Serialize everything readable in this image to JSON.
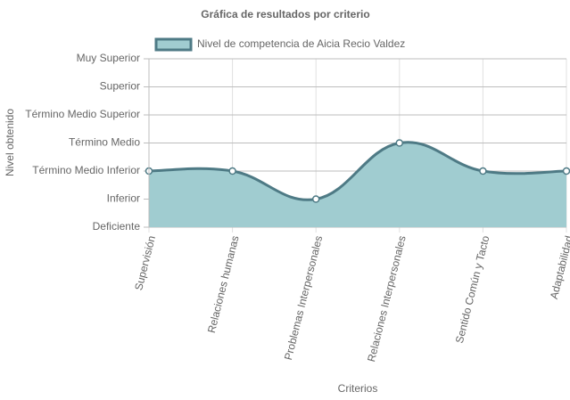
{
  "chart_data": {
    "type": "line",
    "title": "Gráfica de resultados por criterio",
    "x_label": "Criterios",
    "y_label": "Nivel obtenido",
    "categories": [
      "Supervisión",
      "Relaciones humanas",
      "Problemas Interpersonales",
      "Relaciones Interpersonales",
      "Sentido Común y Tacto",
      "Adaptabilidad"
    ],
    "series": [
      {
        "name": "Nivel de competencia de Aicia Recio Valdez",
        "color": "#4e7a85",
        "fill": "#a0ccd0",
        "values": [
          2,
          2,
          1,
          3,
          2,
          2
        ]
      }
    ],
    "ylim": [
      0,
      6
    ],
    "yticks": [
      {
        "value": 0,
        "label": "Deficiente"
      },
      {
        "value": 1,
        "label": "Inferior"
      },
      {
        "value": 2,
        "label": "Término Medio Inferior"
      },
      {
        "value": 3,
        "label": "Término Medio"
      },
      {
        "value": 4,
        "label": "Término Medio Superior"
      },
      {
        "value": 5,
        "label": "Superior"
      },
      {
        "value": 6,
        "label": "Muy Superior"
      }
    ],
    "grid": true
  }
}
